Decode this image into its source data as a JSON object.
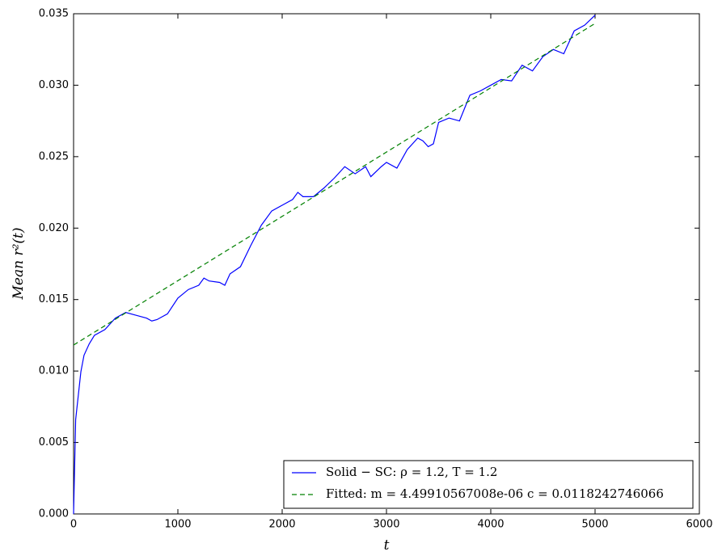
{
  "chart_data": {
    "type": "line",
    "xlabel": "t",
    "ylabel": "Mean r²(t)",
    "xlim": [
      0,
      6000
    ],
    "ylim": [
      0,
      0.035
    ],
    "xticks": [
      0,
      1000,
      2000,
      3000,
      4000,
      5000,
      6000
    ],
    "yticks": [
      {
        "value": 0,
        "label": "0.000"
      },
      0.005,
      {
        "value": 0.01,
        "label": "0.010"
      },
      0.015,
      {
        "value": 0.02,
        "label": "0.020"
      },
      0.025,
      {
        "value": 0.03,
        "label": "0.030"
      },
      0.035
    ],
    "legend": "lower right",
    "series": [
      {
        "name": "Solid − SC: ρ = 1.2,  T = 1.2",
        "color": "#0000ff",
        "style": "solid",
        "x": [
          0,
          20,
          70,
          100,
          150,
          200,
          300,
          400,
          500,
          600,
          700,
          750,
          800,
          900,
          1000,
          1100,
          1200,
          1250,
          1300,
          1400,
          1450,
          1500,
          1600,
          1700,
          1800,
          1900,
          2000,
          2100,
          2150,
          2200,
          2300,
          2400,
          2500,
          2600,
          2700,
          2800,
          2850,
          2950,
          3000,
          3100,
          3200,
          3300,
          3350,
          3400,
          3450,
          3500,
          3600,
          3700,
          3800,
          3900,
          4000,
          4100,
          4200,
          4300,
          4400,
          4500,
          4600,
          4700,
          4800,
          4900,
          5000
        ],
        "values": [
          0,
          0.0066,
          0.00995,
          0.0111,
          0.0119,
          0.0125,
          0.0129,
          0.0137,
          0.0141,
          0.0139,
          0.0137,
          0.0135,
          0.0136,
          0.014,
          0.0151,
          0.0157,
          0.016,
          0.0165,
          0.0163,
          0.0162,
          0.016,
          0.0168,
          0.0173,
          0.0188,
          0.0202,
          0.0212,
          0.0216,
          0.022,
          0.0225,
          0.0222,
          0.0222,
          0.0228,
          0.0235,
          0.0243,
          0.0238,
          0.0243,
          0.0236,
          0.0243,
          0.0246,
          0.0242,
          0.0255,
          0.0263,
          0.0261,
          0.0257,
          0.0259,
          0.0274,
          0.0277,
          0.0275,
          0.0293,
          0.0296,
          0.03,
          0.0304,
          0.0303,
          0.0314,
          0.031,
          0.032,
          0.0325,
          0.0322,
          0.0338,
          0.0342,
          0.0349
        ]
      },
      {
        "name": "Fitted: m = 4.49910567008e-06 c = 0.0118242746066",
        "color": "#008000",
        "style": "dashed",
        "x": [
          0,
          5000
        ],
        "values": [
          0.01182,
          0.03432
        ]
      }
    ]
  }
}
